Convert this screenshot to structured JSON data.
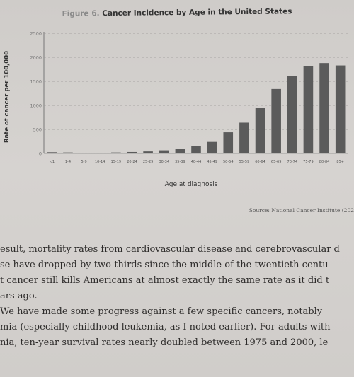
{
  "chart_data": {
    "type": "bar",
    "title_prefix": "Figure 6.",
    "title": "Cancer Incidence by Age in the United States",
    "xlabel": "Age at diagnosis",
    "ylabel": "Rate of cancer per 100,000",
    "categories": [
      "<1",
      "1-4",
      "5-9",
      "10-14",
      "15-19",
      "20-24",
      "25-29",
      "30-34",
      "35-39",
      "40-44",
      "45-49",
      "50-54",
      "55-59",
      "60-64",
      "65-69",
      "70-74",
      "75-79",
      "80-84",
      "85+"
    ],
    "values": [
      25,
      20,
      12,
      14,
      20,
      30,
      42,
      65,
      100,
      150,
      240,
      440,
      640,
      950,
      1340,
      1610,
      1810,
      1880,
      1830
    ],
    "yticks": [
      0,
      500,
      1000,
      1500,
      2000,
      2500
    ],
    "ylim": [
      0,
      2500
    ],
    "grid": "horizontal dashed",
    "color": "#5b5b5b"
  },
  "source": "Source: National Cancer Institute (202",
  "body_lines": [
    "esult, mortality rates from cardiovascular disease and cerebrovascular d",
    "se have dropped by two-thirds since the middle of the twentieth centu",
    "t cancer still kills Americans at almost exactly the same rate as it did t",
    "ars ago.",
    " We have made some progress against a few specific cancers, notably",
    "mia (especially childhood leukemia, as I noted earlier). For adults with",
    "nia, ten-year survival rates nearly doubled between 1975 and 2000, le"
  ]
}
